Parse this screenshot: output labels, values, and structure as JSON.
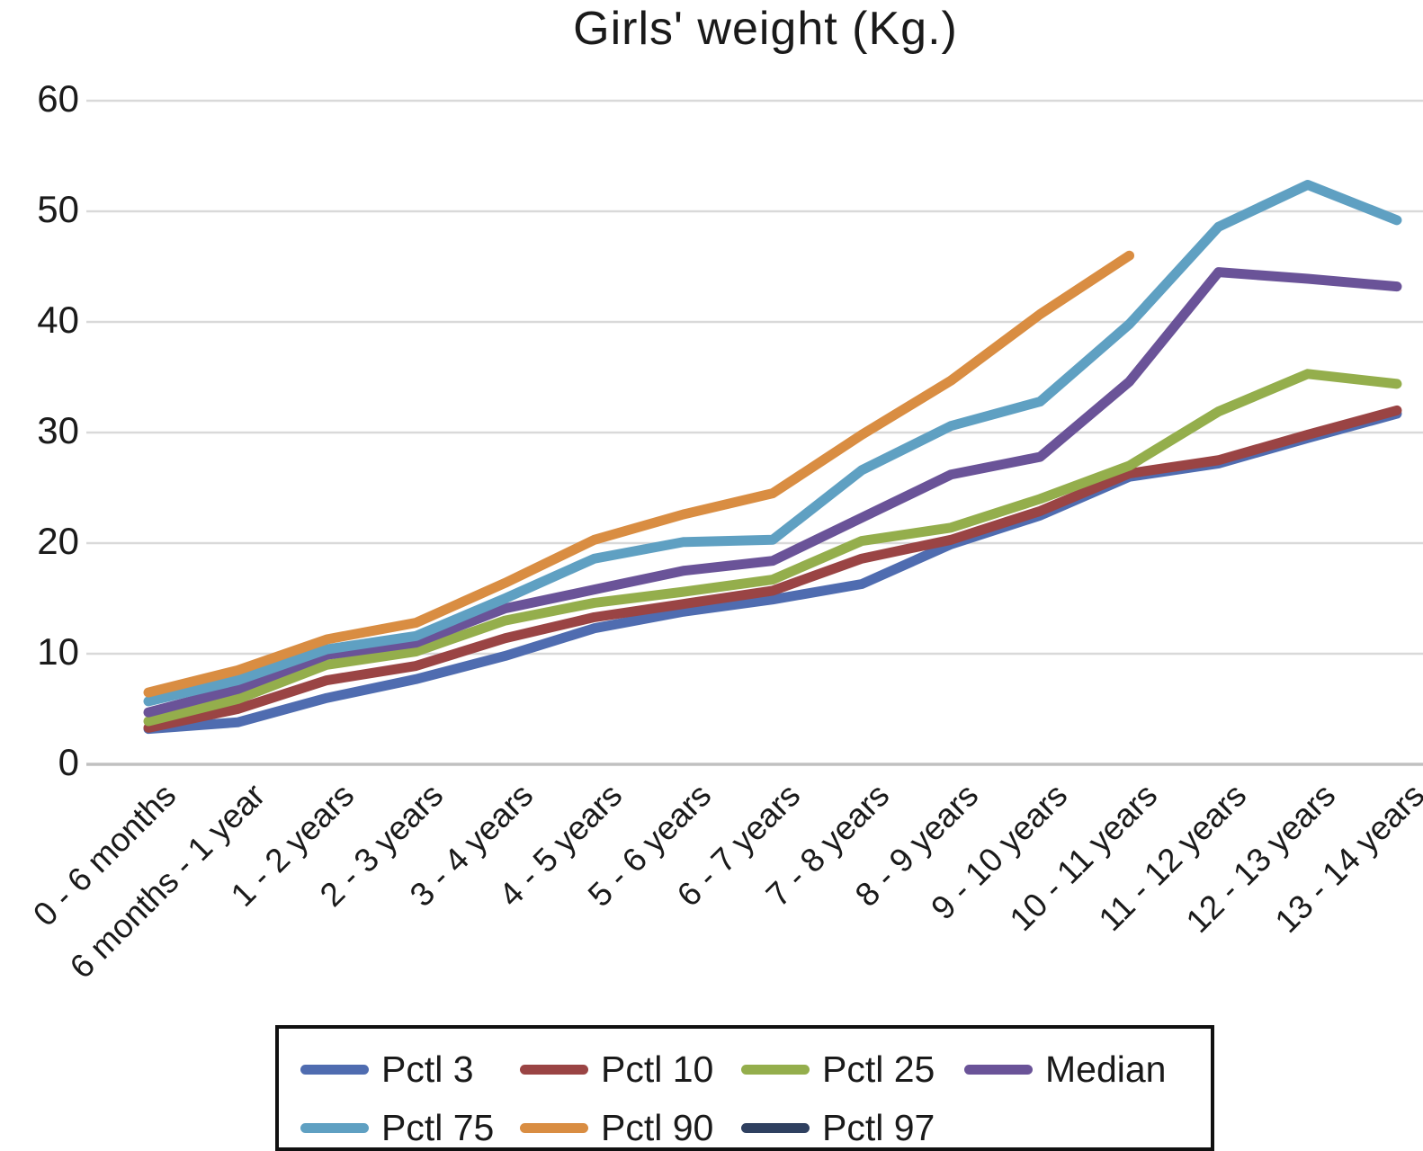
{
  "chart_data": {
    "type": "line",
    "title": "Girls' weight (Kg.)",
    "xlabel": "",
    "ylabel": "",
    "ylim": [
      0,
      60
    ],
    "yticks": [
      0,
      10,
      20,
      30,
      40,
      50,
      60
    ],
    "grid": true,
    "legend_position": "bottom",
    "categories": [
      "0 - 6 months",
      "6 months - 1 year",
      "1 - 2 years",
      "2 - 3 years",
      "3 - 4 years",
      "4 - 5 years",
      "5 - 6 years",
      "6 - 7 years",
      "7 - 8 years",
      "8 - 9 years",
      "9 - 10 years",
      "10 - 11 years",
      "11 - 12 years",
      "12 - 13 years",
      "13 - 14 years"
    ],
    "series": [
      {
        "name": "Pctl 3",
        "color": "#4f6cb0",
        "values": [
          3.2,
          3.8,
          6.0,
          7.7,
          9.8,
          12.3,
          13.8,
          14.9,
          16.3,
          19.9,
          22.5,
          26.0,
          27.2,
          29.5,
          31.7
        ]
      },
      {
        "name": "Pctl 10",
        "color": "#9a4444",
        "values": [
          3.3,
          5.0,
          7.6,
          8.9,
          11.4,
          13.3,
          14.5,
          15.7,
          18.6,
          20.3,
          22.9,
          26.3,
          27.5,
          29.8,
          32.0
        ]
      },
      {
        "name": "Pctl 25",
        "color": "#94ae4c",
        "values": [
          3.9,
          5.9,
          9.0,
          10.2,
          13.0,
          14.6,
          15.6,
          16.7,
          20.2,
          21.4,
          24.0,
          27.0,
          31.9,
          35.3,
          34.4
        ]
      },
      {
        "name": "Median",
        "color": "#6a5398",
        "values": [
          4.7,
          6.8,
          9.9,
          11.0,
          14.1,
          15.8,
          17.5,
          18.4,
          22.3,
          26.2,
          27.8,
          34.6,
          44.5,
          43.9,
          43.2
        ]
      },
      {
        "name": "Pctl 75",
        "color": "#5fa0c2",
        "values": [
          5.7,
          7.6,
          10.4,
          11.6,
          15.0,
          18.6,
          20.1,
          20.3,
          26.6,
          30.6,
          32.8,
          39.8,
          48.6,
          52.4,
          49.2
        ]
      },
      {
        "name": "Pctl 90",
        "color": "#d98d42",
        "values": [
          6.5,
          8.5,
          11.3,
          12.8,
          16.4,
          20.3,
          22.6,
          24.5,
          29.8,
          34.7,
          40.7,
          46.0,
          null,
          null,
          null
        ]
      },
      {
        "name": "Pctl 97",
        "color": "#2f4060",
        "values": [
          null,
          null,
          null,
          null,
          null,
          null,
          null,
          null,
          null,
          null,
          null,
          null,
          null,
          null,
          null
        ]
      }
    ],
    "legend_rows": [
      [
        "Pctl 3",
        "Pctl 10",
        "Pctl 25",
        "Median"
      ],
      [
        "Pctl 75",
        "Pctl 90",
        "Pctl 97"
      ]
    ]
  }
}
